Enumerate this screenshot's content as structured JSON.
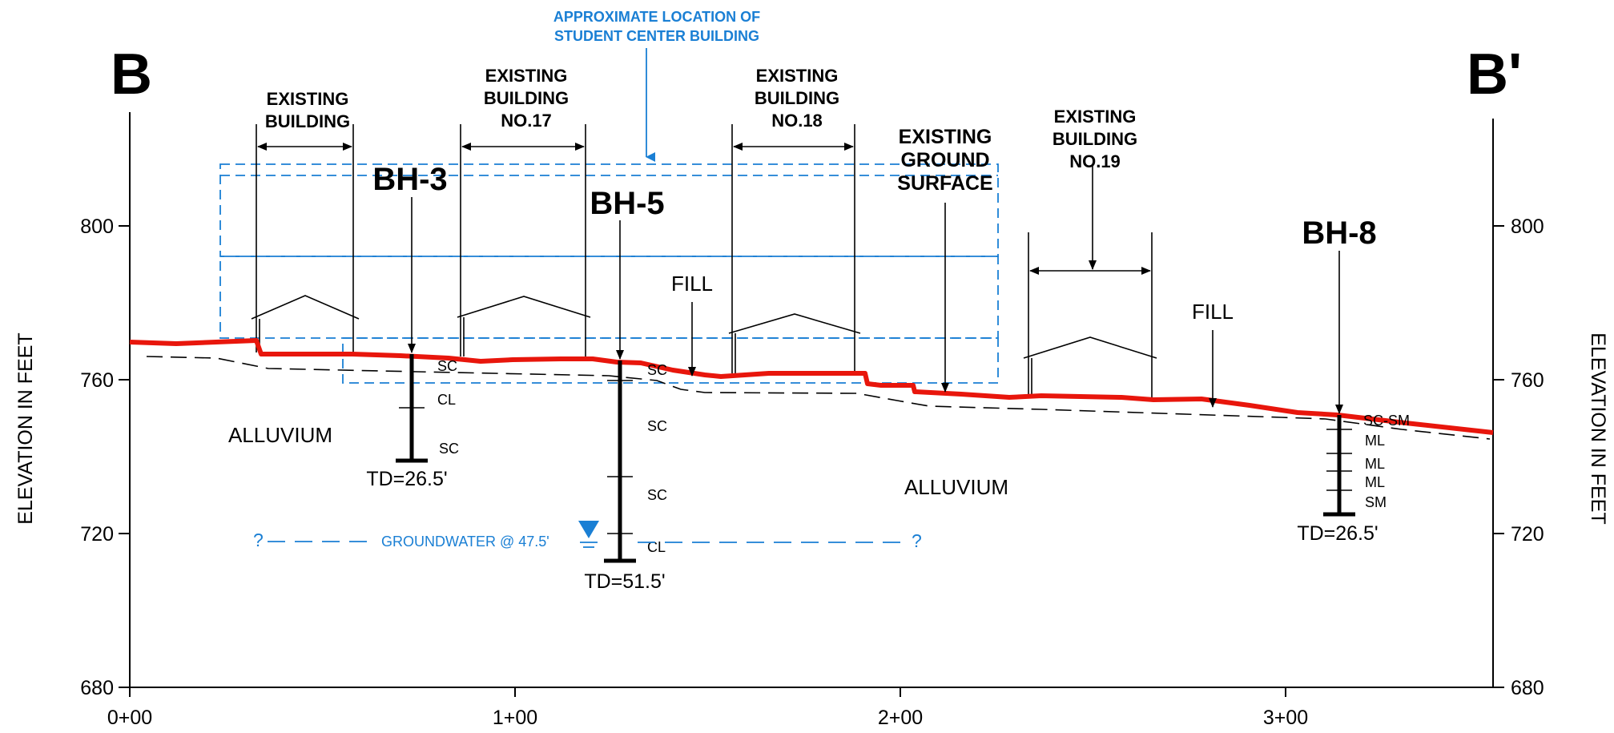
{
  "section": {
    "start": "B",
    "end": "B'"
  },
  "axis": {
    "y_title_left": "ELEVATION IN FEET",
    "y_title_right": "ELEVATION IN FEET",
    "y_ticks": [
      "800",
      "760",
      "720",
      "680"
    ],
    "x_ticks": [
      "0+00",
      "1+00",
      "2+00",
      "3+00"
    ]
  },
  "annotation": {
    "student_center_line1": "APPROXIMATE LOCATION OF",
    "student_center_line2": "STUDENT CENTER BUILDING"
  },
  "buildings": [
    {
      "line1": "EXISTING",
      "line2": "BUILDING",
      "line3": ""
    },
    {
      "line1": "EXISTING",
      "line2": "BUILDING",
      "line3": "NO.17"
    },
    {
      "line1": "EXISTING",
      "line2": "BUILDING",
      "line3": "NO.18"
    },
    {
      "line1": "EXISTING",
      "line2": "BUILDING",
      "line3": "NO.19"
    }
  ],
  "ground_surface": {
    "line1": "EXISTING",
    "line2": "GROUND",
    "line3": "SURFACE"
  },
  "fill_labels": [
    "FILL",
    "FILL"
  ],
  "alluvium_labels": [
    "ALLUVIUM",
    "ALLUVIUM"
  ],
  "boreholes": [
    {
      "name": "BH-3",
      "total_depth": "TD=26.5'",
      "soils": [
        "SC",
        "CL",
        "SC"
      ]
    },
    {
      "name": "BH-5",
      "total_depth": "TD=51.5'",
      "soils": [
        "SC",
        "SC",
        "SC",
        "CL"
      ]
    },
    {
      "name": "BH-8",
      "total_depth": "TD=26.5'",
      "soils": [
        "SC-SM",
        "ML",
        "ML",
        "ML",
        "SM"
      ]
    }
  ],
  "groundwater": {
    "label": "GROUNDWATER @ 47.5'",
    "unknown_left": "?",
    "unknown_right": "?"
  },
  "colors": {
    "ground_surface_line": "#e8160c",
    "annotation_blue": "#1a7fd4",
    "linework": "#000000"
  }
}
